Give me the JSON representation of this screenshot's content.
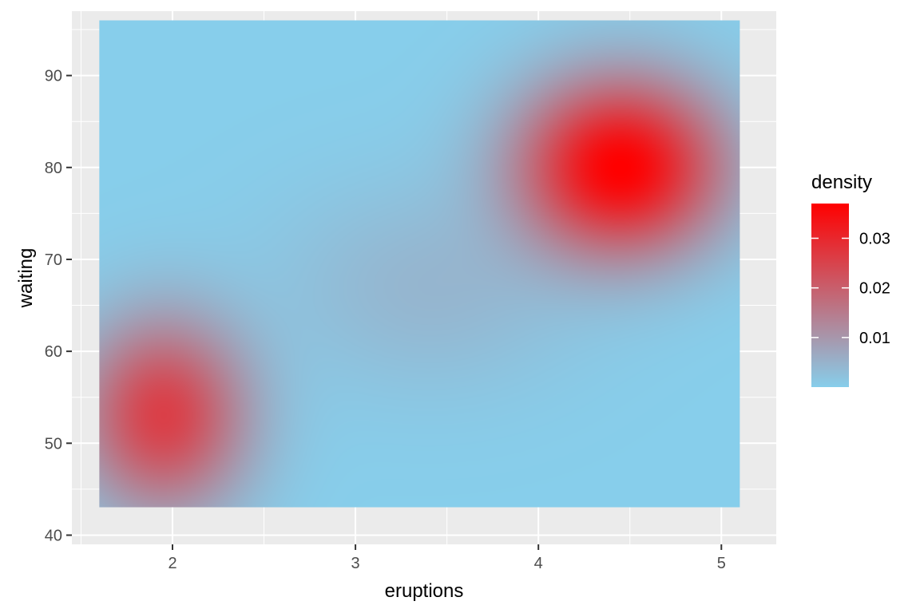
{
  "chart_data": {
    "type": "heatmap",
    "title": "",
    "xlabel": "eruptions",
    "ylabel": "waiting",
    "xlim": [
      1.45,
      5.3
    ],
    "ylim": [
      39,
      97
    ],
    "tile_extent": {
      "x": [
        1.6,
        5.1
      ],
      "y": [
        43,
        96
      ]
    },
    "x_ticks": [
      2,
      3,
      4,
      5
    ],
    "y_ticks": [
      40,
      50,
      60,
      70,
      80,
      90
    ],
    "x_tick_labels": [
      "2",
      "3",
      "4",
      "5"
    ],
    "y_tick_labels": [
      "40",
      "50",
      "60",
      "70",
      "80",
      "90"
    ],
    "grid": true,
    "legend": {
      "title": "density",
      "position": "right",
      "range": [
        0,
        0.037
      ],
      "breaks": [
        0.01,
        0.02,
        0.03
      ],
      "labels": [
        "0.01",
        "0.02",
        "0.03"
      ]
    },
    "color_low": "#87ceeb",
    "color_high": "#ff0000",
    "density_peaks": [
      {
        "x": 4.45,
        "y": 80,
        "density": 0.037
      },
      {
        "x": 1.95,
        "y": 53,
        "density": 0.024
      }
    ]
  }
}
